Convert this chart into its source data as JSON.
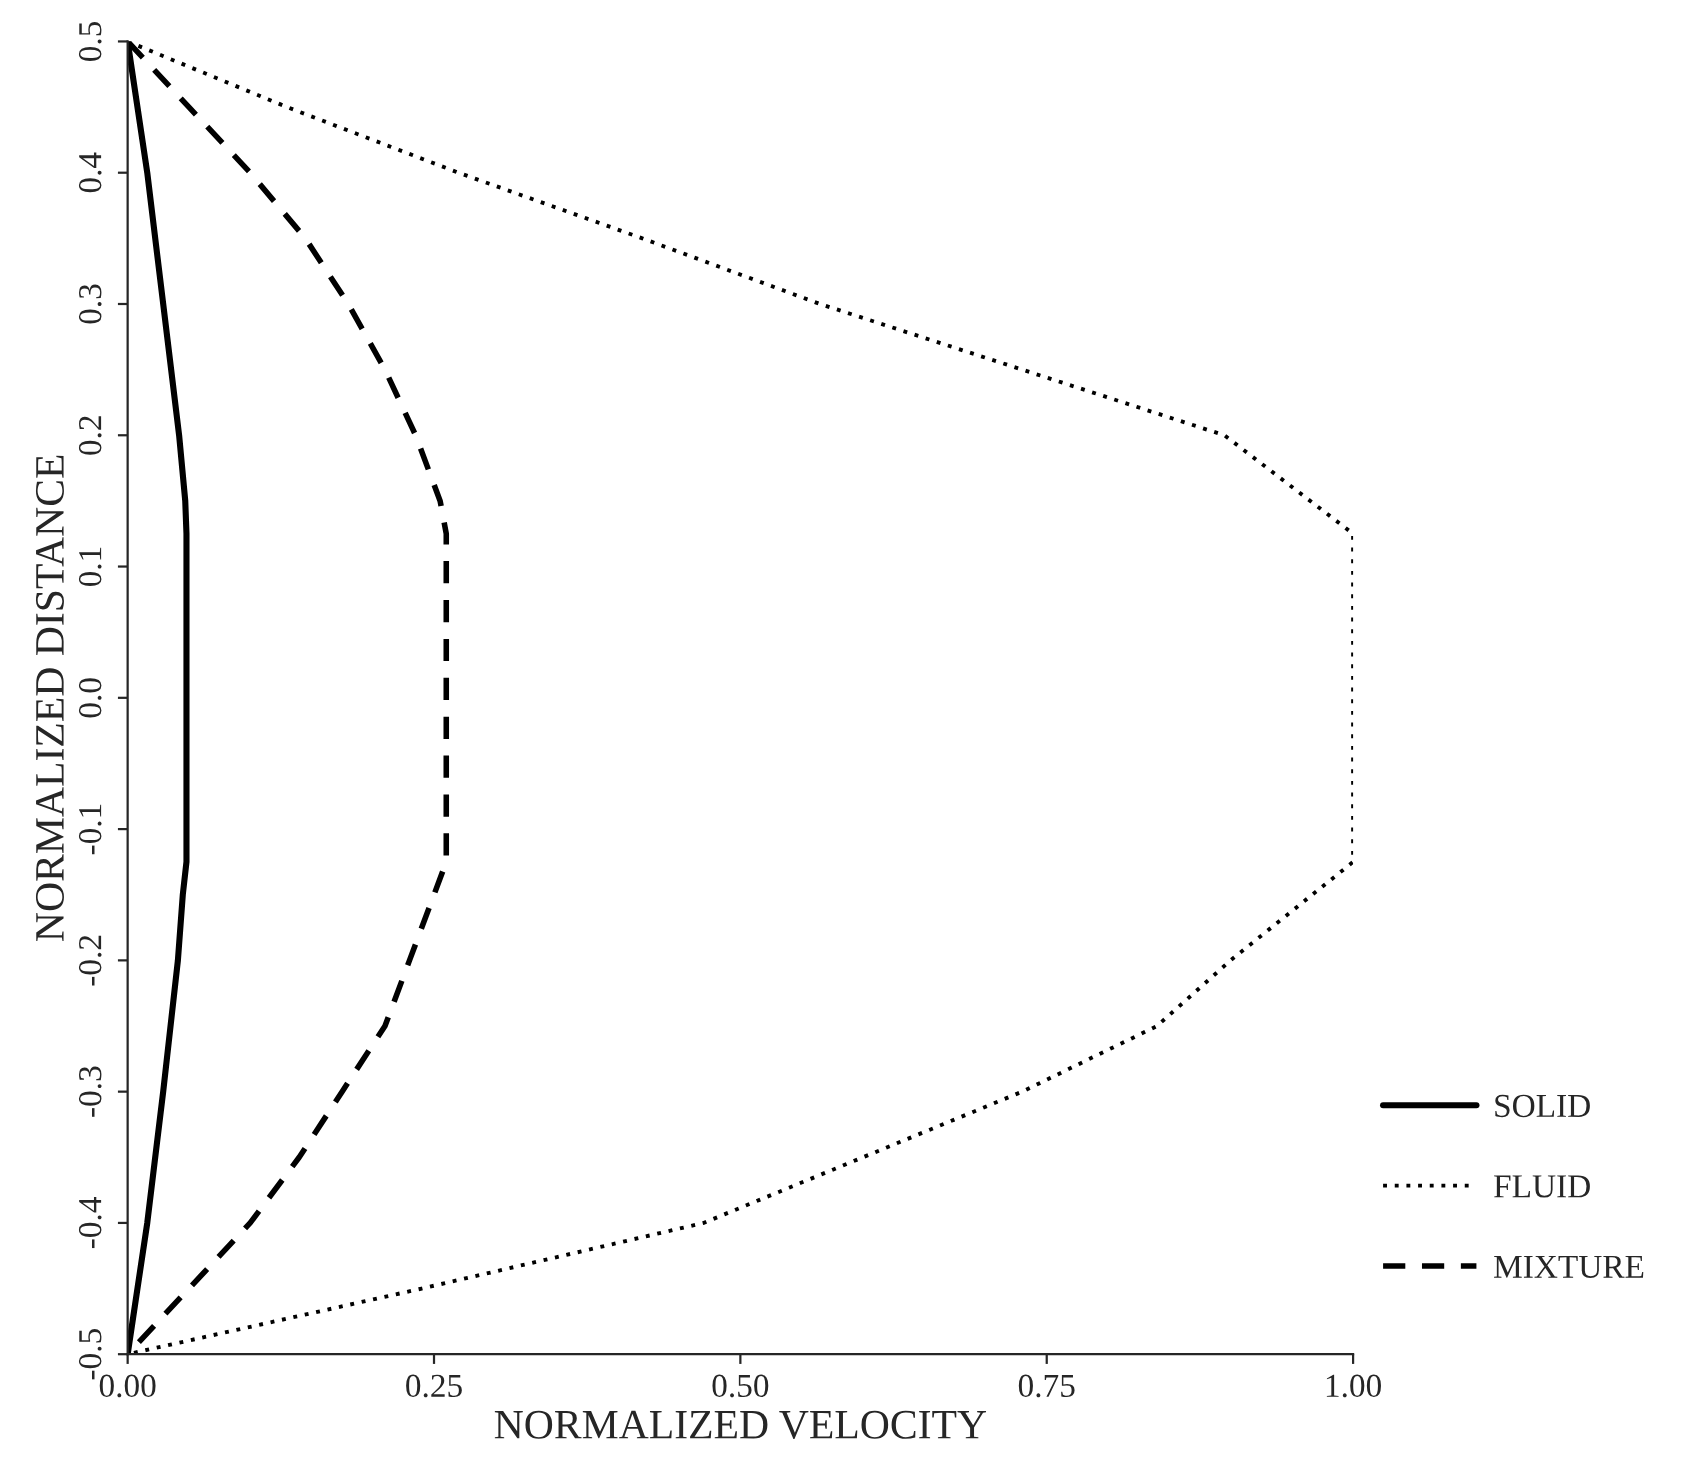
{
  "chart_data": {
    "type": "line",
    "xlabel": "NORMALIZED VELOCITY",
    "ylabel": "NORMALIZED DISTANCE",
    "xlim": [
      0,
      1.0
    ],
    "xticks": [
      {
        "value": 0,
        "label": "0.00"
      },
      {
        "value": 0.25,
        "label": "0.25"
      },
      {
        "value": 0.5,
        "label": "0.50"
      },
      {
        "value": 0.75,
        "label": "0.75"
      },
      {
        "value": 1.0,
        "label": "1.00"
      }
    ],
    "ylim": [
      -0.5,
      0.5
    ],
    "yticks": [
      -0.5,
      -0.4,
      -0.3,
      -0.2,
      -0.1,
      {
        "value": 0,
        "label": "0.0"
      },
      0.1,
      0.2,
      0.3,
      0.4,
      0.5
    ],
    "grid": false,
    "legend": "bottom right",
    "series": [
      {
        "name": "SOLID",
        "color": "#000000",
        "line_style": "solid",
        "x": [
          0,
          0.016,
          0.029,
          0.042,
          0.047,
          0.048,
          0.048,
          0.045,
          0.041,
          0.029,
          0.016,
          0
        ],
        "values": [
          0.5,
          0.4,
          0.3,
          0.2,
          0.15,
          0.125,
          -0.125,
          -0.15,
          -0.2,
          -0.3,
          -0.4,
          -0.5
        ]
      },
      {
        "name": "FLUID",
        "color": "#000000",
        "line_style": "dotted",
        "x": [
          0,
          0.13,
          0.27,
          0.42,
          0.565,
          0.73,
          0.895,
          1.0,
          1.0,
          0.9,
          0.84,
          0.73,
          0.6,
          0.47,
          0.24,
          0
        ],
        "values": [
          0.5,
          0.45,
          0.4,
          0.35,
          0.3,
          0.25,
          0.2,
          0.125,
          -0.125,
          -0.2,
          -0.25,
          -0.3,
          -0.35,
          -0.4,
          -0.45,
          -0.5
        ]
      },
      {
        "name": "MIXTURE",
        "color": "#000000",
        "line_style": "dashed",
        "x": [
          0,
          0.05,
          0.1,
          0.145,
          0.18,
          0.21,
          0.235,
          0.255,
          0.26,
          0.26,
          0.25,
          0.23,
          0.21,
          0.175,
          0.14,
          0.1,
          0.05,
          0
        ],
        "values": [
          0.5,
          0.45,
          0.4,
          0.35,
          0.3,
          0.25,
          0.2,
          0.15,
          0.125,
          -0.125,
          -0.15,
          -0.2,
          -0.25,
          -0.3,
          -0.35,
          -0.4,
          -0.45,
          -0.5
        ]
      }
    ]
  }
}
